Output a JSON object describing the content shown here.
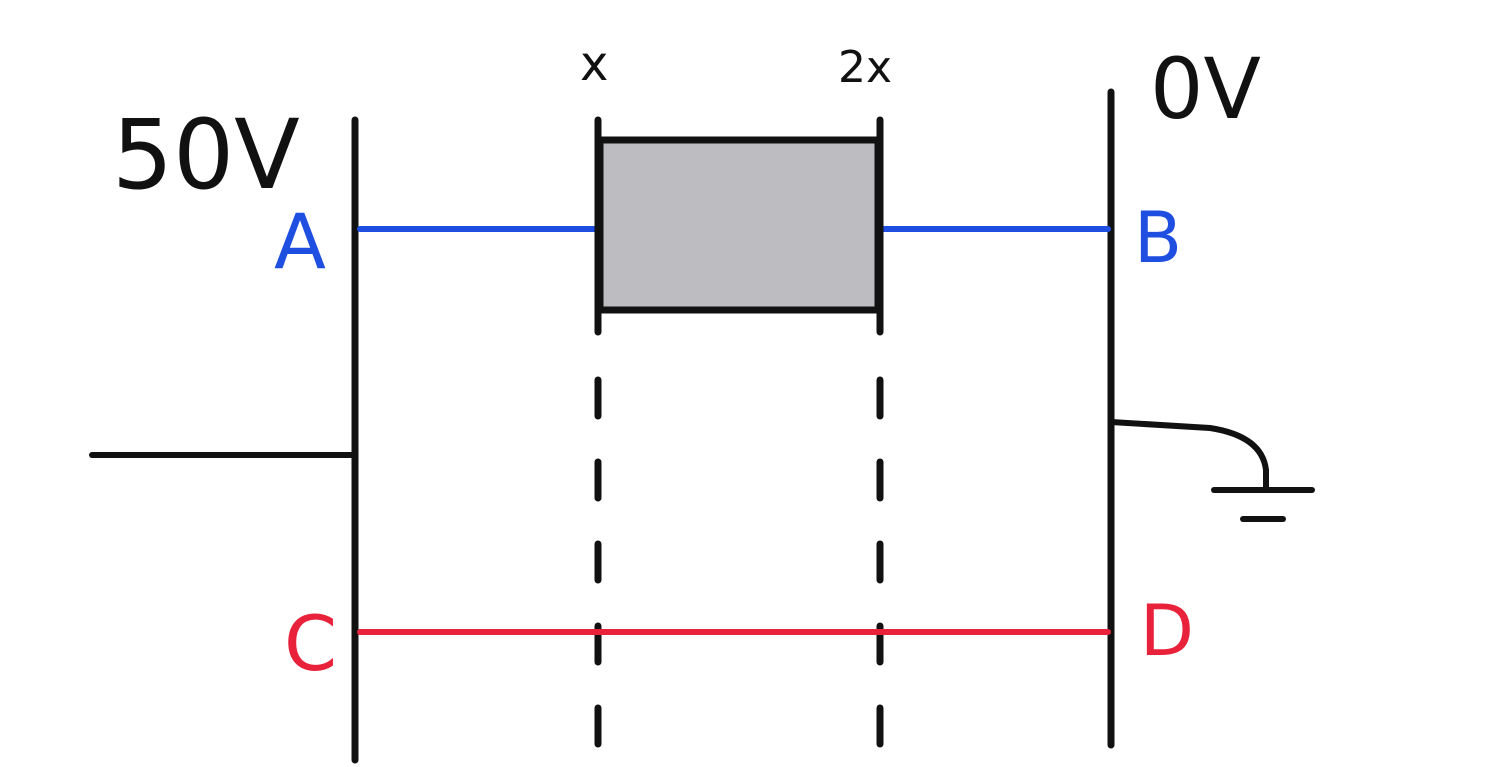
{
  "labels": {
    "left_voltage": "50V",
    "right_voltage": "0V",
    "x_marker": "x",
    "two_x_marker": "2x",
    "point_a": "A",
    "point_b": "B",
    "point_c": "C",
    "point_d": "D"
  },
  "colors": {
    "line": "#111111",
    "wire_ab": "#1f4fe0",
    "wire_cd": "#e8223a",
    "block_fill": "#bdbdc1",
    "background": "#ffffff"
  }
}
